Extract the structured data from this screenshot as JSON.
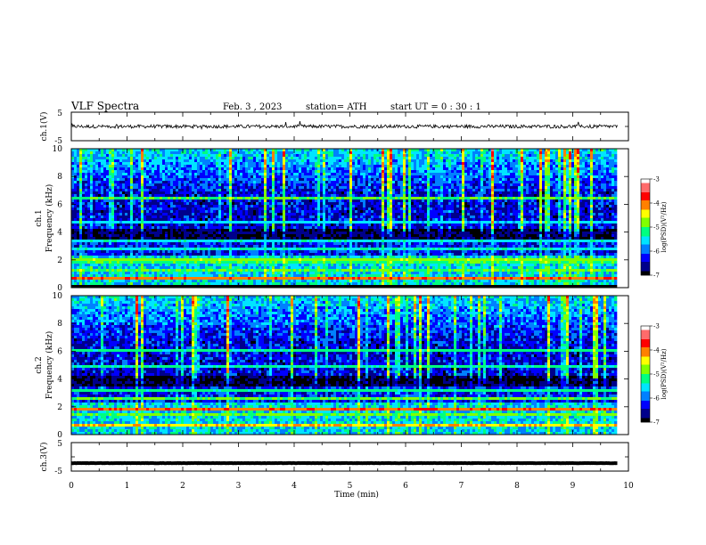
{
  "header": {
    "title": "VLF  Spectra",
    "date": "Feb. 3  , 2023",
    "station": "station= ATH",
    "start_ut": "start  UT  =   0  : 30 : 1"
  },
  "chart_data": [
    {
      "name": "ch1-waveform",
      "type": "line",
      "ylabel": "ch.1(V)",
      "ylim": [
        -5,
        5
      ],
      "yticks": [
        "5",
        "-5"
      ],
      "xlim": [
        0,
        10
      ],
      "series_color": "#000000",
      "x_end": 9.8,
      "baseline": 0,
      "amplitude": 0.6
    },
    {
      "name": "ch1-spectrogram",
      "type": "heatmap",
      "ylabel": "ch.1",
      "ylabel2": "Frequency  (kHz)",
      "ylim": [
        0,
        10
      ],
      "yticks": [
        "0",
        "2",
        "4",
        "6",
        "8",
        "10"
      ],
      "xlim": [
        0,
        10
      ],
      "x_end": 9.8,
      "colorbar": {
        "label": "log(PSD)(V²/Hz)",
        "range": [
          -7,
          -3
        ],
        "ticks": [
          "-3",
          "-4",
          "-5",
          "-6",
          "-7"
        ],
        "colors": [
          "#000000",
          "#00008b",
          "#0000ff",
          "#0080ff",
          "#00e5ff",
          "#00ff80",
          "#80ff00",
          "#ffff00",
          "#ff8000",
          "#ff0000",
          "#ff6b6b",
          "#ffffff"
        ]
      },
      "bands_khz": [
        {
          "f": 0.1,
          "level": -7
        },
        {
          "f": 0.4,
          "level": -6.5
        },
        {
          "f": 0.7,
          "level": -4.0
        },
        {
          "f": 1.3,
          "level": -5.0
        },
        {
          "f": 1.8,
          "level": -5.1
        },
        {
          "f": 2.1,
          "level": -4.8
        },
        {
          "f": 2.8,
          "level": -5.4
        },
        {
          "f": 3.3,
          "level": -5.5
        },
        {
          "f": 4.0,
          "level": -6.8
        },
        {
          "f": 4.8,
          "level": -5.6
        },
        {
          "f": 6.5,
          "level": -5.0
        }
      ]
    },
    {
      "name": "ch2-spectrogram",
      "type": "heatmap",
      "ylabel": "ch.2",
      "ylabel2": "Frequency  (kHz)",
      "ylim": [
        0,
        10
      ],
      "yticks": [
        "0",
        "2",
        "4",
        "6",
        "8",
        "10"
      ],
      "xlim": [
        0,
        10
      ],
      "x_end": 9.8,
      "colorbar": {
        "label": "log(PSD)(V²/Hz)",
        "range": [
          -7,
          -3
        ],
        "ticks": [
          "-3",
          "-4",
          "-5",
          "-6",
          "-7"
        ],
        "colors": [
          "#000000",
          "#00008b",
          "#0000ff",
          "#0080ff",
          "#00e5ff",
          "#00ff80",
          "#80ff00",
          "#ffff00",
          "#ff8000",
          "#ff0000",
          "#ff6b6b",
          "#ffffff"
        ]
      },
      "bands_khz": [
        {
          "f": 0.7,
          "level": -4.3
        },
        {
          "f": 1.5,
          "level": -4.9
        },
        {
          "f": 1.9,
          "level": -4.0
        },
        {
          "f": 2.6,
          "level": -5.0
        },
        {
          "f": 3.2,
          "level": -5.2
        },
        {
          "f": 4.9,
          "level": -5.3
        },
        {
          "f": 6.0,
          "level": -5.2
        }
      ]
    },
    {
      "name": "ch3-waveform",
      "type": "line",
      "ylabel": "ch.3(V)",
      "ylim": [
        -5,
        5
      ],
      "yticks": [
        "5",
        "-5"
      ],
      "xlim": [
        0,
        10
      ],
      "xlabel": "Time  (min)",
      "xticks": [
        "0",
        "1",
        "2",
        "3",
        "4",
        "5",
        "6",
        "7",
        "8",
        "9",
        "10"
      ],
      "series_color": "#000000",
      "x_end": 9.8,
      "baseline": -2.2,
      "amplitude": 0.05
    }
  ]
}
